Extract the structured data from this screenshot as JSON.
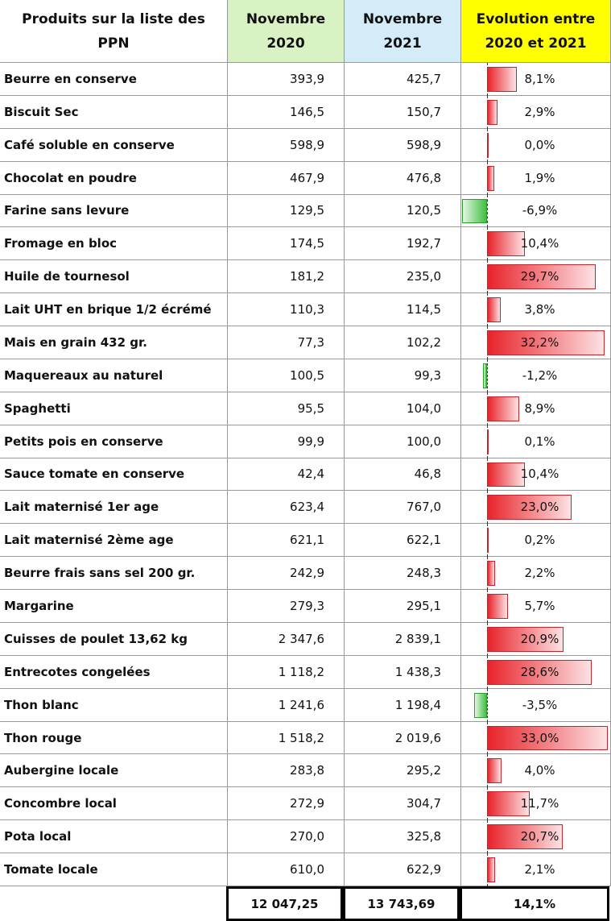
{
  "table": {
    "header": [
      "Produits sur la liste des PPN",
      "Novembre 2020",
      "Novembre 2021",
      "Evolution entre 2020 et 2021"
    ],
    "rows": [
      [
        "Beurre en conserve",
        "393,9",
        "425,7",
        {
          "value": 8.1,
          "label": "8,1%"
        }
      ],
      [
        "Biscuit Sec",
        "146,5",
        "150,7",
        {
          "value": 2.9,
          "label": "2,9%"
        }
      ],
      [
        "Café soluble en conserve",
        "598,9",
        "598,9",
        {
          "value": 0.0,
          "label": "0,0%"
        }
      ],
      [
        "Chocolat en poudre",
        "467,9",
        "476,8",
        {
          "value": 1.9,
          "label": "1,9%"
        }
      ],
      [
        "Farine sans levure",
        "129,5",
        "120,5",
        {
          "value": -6.9,
          "label": "-6,9%"
        }
      ],
      [
        "Fromage en bloc",
        "174,5",
        "192,7",
        {
          "value": 10.4,
          "label": "10,4%"
        }
      ],
      [
        "Huile de tournesol",
        "181,2",
        "235,0",
        {
          "value": 29.7,
          "label": "29,7%"
        }
      ],
      [
        "Lait UHT en brique 1/2 écrémé",
        "110,3",
        "114,5",
        {
          "value": 3.8,
          "label": "3,8%"
        }
      ],
      [
        "Mais en grain 432 gr.",
        "77,3",
        "102,2",
        {
          "value": 32.2,
          "label": "32,2%"
        }
      ],
      [
        "Maquereaux au naturel",
        "100,5",
        "99,3",
        {
          "value": -1.2,
          "label": "-1,2%"
        }
      ],
      [
        "Spaghetti",
        "95,5",
        "104,0",
        {
          "value": 8.9,
          "label": "8,9%"
        }
      ],
      [
        "Petits pois en conserve",
        "99,9",
        "100,0",
        {
          "value": 0.1,
          "label": "0,1%"
        }
      ],
      [
        "Sauce tomate en conserve",
        "42,4",
        "46,8",
        {
          "value": 10.4,
          "label": "10,4%"
        }
      ],
      [
        "Lait maternisé 1er age",
        "623,4",
        "767,0",
        {
          "value": 23.0,
          "label": "23,0%"
        }
      ],
      [
        "Lait maternisé 2ème age",
        "621,1",
        "622,1",
        {
          "value": 0.2,
          "label": "0,2%"
        }
      ],
      [
        "Beurre frais sans sel 200 gr.",
        "242,9",
        "248,3",
        {
          "value": 2.2,
          "label": "2,2%"
        }
      ],
      [
        "Margarine",
        "279,3",
        "295,1",
        {
          "value": 5.7,
          "label": "5,7%"
        }
      ],
      [
        "Cuisses de poulet 13,62 kg",
        "2 347,6",
        "2 839,1",
        {
          "value": 20.9,
          "label": "20,9%"
        }
      ],
      [
        "Entrecotes congelées",
        "1 118,2",
        "1 438,3",
        {
          "value": 28.6,
          "label": "28,6%"
        }
      ],
      [
        "Thon blanc",
        "1 241,6",
        "1 198,4",
        {
          "value": -3.5,
          "label": "-3,5%"
        }
      ],
      [
        "Thon rouge",
        "1 518,2",
        "2 019,6",
        {
          "value": 33.0,
          "label": "33,0%"
        }
      ],
      [
        "Aubergine locale",
        "283,8",
        "295,2",
        {
          "value": 4.0,
          "label": "4,0%"
        }
      ],
      [
        "Concombre local",
        "272,9",
        "304,7",
        {
          "value": 11.7,
          "label": "11,7%"
        }
      ],
      [
        "Pota local",
        "270,0",
        "325,8",
        {
          "value": 20.7,
          "label": "20,7%"
        }
      ],
      [
        "Tomate locale",
        "610,0",
        "622,9",
        {
          "value": 2.1,
          "label": "2,1%"
        }
      ]
    ],
    "total": [
      "12 047,25",
      "13 743,69",
      "14,1%"
    ]
  }
}
